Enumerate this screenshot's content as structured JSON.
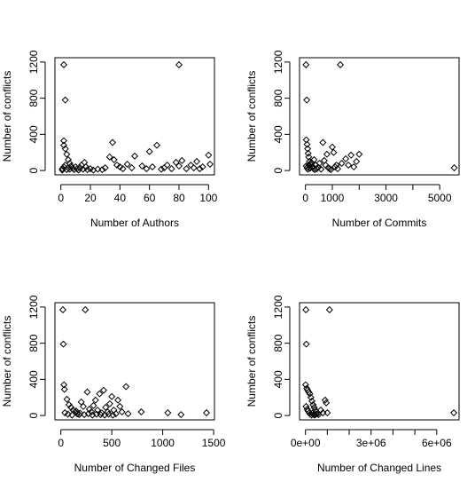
{
  "chart_data": [
    {
      "type": "scatter",
      "title": "",
      "xlabel": "Number of Authors",
      "ylabel": "Number of conflicts",
      "xticks": [
        0,
        20,
        40,
        60,
        80,
        100
      ],
      "xtick_labels": [
        "0",
        "20",
        "40",
        "60",
        "80",
        "100"
      ],
      "yticks": [
        0,
        400,
        800,
        1200
      ],
      "ytick_labels": [
        "0",
        "400",
        "800",
        "1200"
      ],
      "xlim": [
        -4,
        104
      ],
      "ylim": [
        -48,
        1248
      ],
      "points": [
        [
          2,
          1170
        ],
        [
          3,
          780
        ],
        [
          2,
          330
        ],
        [
          2,
          280
        ],
        [
          3,
          240
        ],
        [
          4,
          180
        ],
        [
          5,
          120
        ],
        [
          6,
          80
        ],
        [
          3,
          60
        ],
        [
          2,
          40
        ],
        [
          1,
          20
        ],
        [
          1,
          5
        ],
        [
          4,
          10
        ],
        [
          5,
          30
        ],
        [
          6,
          15
        ],
        [
          7,
          50
        ],
        [
          8,
          25
        ],
        [
          9,
          10
        ],
        [
          10,
          40
        ],
        [
          11,
          20
        ],
        [
          12,
          5
        ],
        [
          13,
          30
        ],
        [
          14,
          60
        ],
        [
          15,
          15
        ],
        [
          16,
          90
        ],
        [
          17,
          40
        ],
        [
          18,
          10
        ],
        [
          20,
          20
        ],
        [
          22,
          5
        ],
        [
          25,
          15
        ],
        [
          28,
          10
        ],
        [
          30,
          30
        ],
        [
          33,
          150
        ],
        [
          35,
          310
        ],
        [
          36,
          120
        ],
        [
          38,
          60
        ],
        [
          40,
          40
        ],
        [
          42,
          20
        ],
        [
          45,
          70
        ],
        [
          48,
          30
        ],
        [
          50,
          160
        ],
        [
          55,
          50
        ],
        [
          58,
          20
        ],
        [
          60,
          210
        ],
        [
          62,
          40
        ],
        [
          65,
          280
        ],
        [
          68,
          15
        ],
        [
          70,
          30
        ],
        [
          72,
          60
        ],
        [
          75,
          20
        ],
        [
          78,
          90
        ],
        [
          80,
          1170
        ],
        [
          80,
          50
        ],
        [
          82,
          110
        ],
        [
          85,
          20
        ],
        [
          88,
          60
        ],
        [
          90,
          30
        ],
        [
          92,
          100
        ],
        [
          94,
          20
        ],
        [
          96,
          40
        ],
        [
          100,
          170
        ],
        [
          101,
          70
        ]
      ]
    },
    {
      "type": "scatter",
      "title": "",
      "xlabel": "Number of Commits",
      "ylabel": "Number of conflicts",
      "xticks": [
        0,
        1000,
        2000,
        3000,
        4000,
        5000
      ],
      "xtick_labels": [
        "0",
        "1000",
        "",
        "3000",
        "",
        "5000"
      ],
      "yticks": [
        0,
        400,
        800,
        1200
      ],
      "ytick_labels": [
        "0",
        "400",
        "800",
        "1200"
      ],
      "xlim": [
        -220,
        5720
      ],
      "ylim": [
        -48,
        1248
      ],
      "points": [
        [
          20,
          1170
        ],
        [
          50,
          780
        ],
        [
          30,
          340
        ],
        [
          60,
          290
        ],
        [
          80,
          240
        ],
        [
          100,
          190
        ],
        [
          120,
          150
        ],
        [
          150,
          100
        ],
        [
          200,
          70
        ],
        [
          250,
          40
        ],
        [
          300,
          20
        ],
        [
          350,
          10
        ],
        [
          30,
          50
        ],
        [
          60,
          30
        ],
        [
          90,
          15
        ],
        [
          130,
          60
        ],
        [
          170,
          25
        ],
        [
          220,
          90
        ],
        [
          280,
          40
        ],
        [
          320,
          120
        ],
        [
          380,
          60
        ],
        [
          420,
          20
        ],
        [
          480,
          35
        ],
        [
          520,
          80
        ],
        [
          580,
          15
        ],
        [
          650,
          310
        ],
        [
          700,
          110
        ],
        [
          750,
          60
        ],
        [
          800,
          180
        ],
        [
          850,
          30
        ],
        [
          900,
          20
        ],
        [
          950,
          10
        ],
        [
          1000,
          260
        ],
        [
          1050,
          200
        ],
        [
          1100,
          40
        ],
        [
          1150,
          60
        ],
        [
          1200,
          20
        ],
        [
          1300,
          1170
        ],
        [
          1350,
          80
        ],
        [
          1500,
          130
        ],
        [
          1600,
          60
        ],
        [
          1700,
          170
        ],
        [
          1800,
          40
        ],
        [
          1900,
          100
        ],
        [
          2000,
          180
        ],
        [
          5540,
          30
        ]
      ]
    },
    {
      "type": "scatter",
      "title": "",
      "xlabel": "Number of Changed Files",
      "ylabel": "Number of conflicts",
      "xticks": [
        0,
        500,
        1000,
        1500
      ],
      "xtick_labels": [
        "0",
        "500",
        "1000",
        "1500"
      ],
      "yticks": [
        0,
        400,
        800,
        1200
      ],
      "ytick_labels": [
        "0",
        "400",
        "800",
        "1200"
      ],
      "xlim": [
        -58,
        1508
      ],
      "ylim": [
        -48,
        1248
      ],
      "points": [
        [
          20,
          1170
        ],
        [
          25,
          790
        ],
        [
          30,
          340
        ],
        [
          35,
          290
        ],
        [
          240,
          1170
        ],
        [
          60,
          180
        ],
        [
          80,
          120
        ],
        [
          100,
          90
        ],
        [
          120,
          60
        ],
        [
          140,
          40
        ],
        [
          160,
          20
        ],
        [
          180,
          10
        ],
        [
          200,
          150
        ],
        [
          220,
          100
        ],
        [
          260,
          260
        ],
        [
          280,
          70
        ],
        [
          300,
          40
        ],
        [
          320,
          110
        ],
        [
          340,
          170
        ],
        [
          360,
          60
        ],
        [
          380,
          240
        ],
        [
          400,
          30
        ],
        [
          420,
          280
        ],
        [
          440,
          90
        ],
        [
          460,
          40
        ],
        [
          480,
          130
        ],
        [
          500,
          210
        ],
        [
          520,
          60
        ],
        [
          540,
          20
        ],
        [
          560,
          170
        ],
        [
          580,
          100
        ],
        [
          600,
          40
        ],
        [
          640,
          320
        ],
        [
          660,
          20
        ],
        [
          40,
          30
        ],
        [
          70,
          15
        ],
        [
          110,
          5
        ],
        [
          150,
          50
        ],
        [
          190,
          25
        ],
        [
          230,
          10
        ],
        [
          270,
          20
        ],
        [
          310,
          5
        ],
        [
          350,
          15
        ],
        [
          390,
          10
        ],
        [
          430,
          5
        ],
        [
          470,
          15
        ],
        [
          510,
          5
        ],
        [
          790,
          40
        ],
        [
          1050,
          30
        ],
        [
          1180,
          10
        ],
        [
          1430,
          30
        ]
      ]
    },
    {
      "type": "scatter",
      "title": "",
      "xlabel": "Number of Changed Lines",
      "ylabel": "Number of conflicts",
      "xticks": [
        0,
        1000000,
        2000000,
        3000000,
        4000000,
        5000000,
        6000000
      ],
      "xtick_labels": [
        "0e+00",
        "",
        "",
        "3e+06",
        "",
        "",
        "6e+06"
      ],
      "yticks": [
        0,
        400,
        800,
        1200
      ],
      "ytick_labels": [
        "0",
        "400",
        "800",
        "1200"
      ],
      "xlim": [
        -270000,
        7020000
      ],
      "ylim": [
        -48,
        1248
      ],
      "points": [
        [
          20000,
          1170
        ],
        [
          40000,
          790
        ],
        [
          1100000,
          1170
        ],
        [
          10000,
          340
        ],
        [
          60000,
          300
        ],
        [
          100000,
          280
        ],
        [
          150000,
          260
        ],
        [
          200000,
          240
        ],
        [
          250000,
          200
        ],
        [
          300000,
          160
        ],
        [
          350000,
          120
        ],
        [
          400000,
          90
        ],
        [
          450000,
          60
        ],
        [
          500000,
          40
        ],
        [
          550000,
          20
        ],
        [
          600000,
          10
        ],
        [
          700000,
          60
        ],
        [
          800000,
          30
        ],
        [
          900000,
          170
        ],
        [
          950000,
          140
        ],
        [
          1000000,
          30
        ],
        [
          30000,
          100
        ],
        [
          80000,
          70
        ],
        [
          120000,
          50
        ],
        [
          180000,
          30
        ],
        [
          220000,
          15
        ],
        [
          280000,
          5
        ],
        [
          320000,
          25
        ],
        [
          380000,
          10
        ],
        [
          420000,
          5
        ],
        [
          480000,
          15
        ],
        [
          6780000,
          30
        ]
      ]
    }
  ]
}
